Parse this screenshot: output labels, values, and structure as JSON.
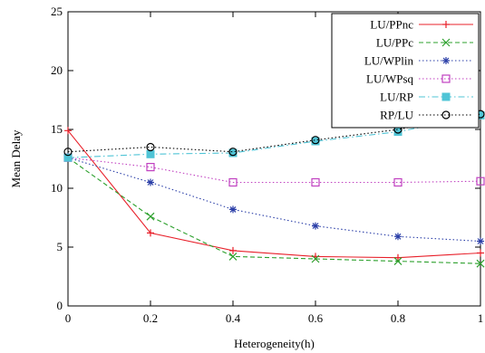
{
  "chart_data": {
    "type": "line",
    "title": "",
    "xlabel": "Heterogeneity(h)",
    "ylabel": "Mean Delay",
    "xlim": [
      0,
      1
    ],
    "ylim": [
      0,
      25
    ],
    "x_ticks": [
      0,
      0.2,
      0.4,
      0.6,
      0.8,
      1
    ],
    "x_tick_labels": [
      "0",
      "0.2",
      "0.4",
      "0.6",
      "0.8",
      "1"
    ],
    "y_ticks": [
      0,
      5,
      10,
      15,
      20,
      25
    ],
    "y_tick_labels": [
      "0",
      "5",
      "10",
      "15",
      "20",
      "25"
    ],
    "grid": false,
    "legend_position": "top-right",
    "x": [
      0,
      0.2,
      0.4,
      0.6,
      0.8,
      1
    ],
    "series": [
      {
        "name": "LU/PPnc",
        "color": "#e8202a",
        "marker": "plus",
        "dash": "solid",
        "values": [
          14.9,
          6.2,
          4.7,
          4.2,
          4.1,
          4.5
        ]
      },
      {
        "name": "LU/PPc",
        "color": "#2ca02c",
        "marker": "x",
        "dash": "dashed",
        "values": [
          12.6,
          7.6,
          4.2,
          4.0,
          3.8,
          3.6
        ]
      },
      {
        "name": "LU/WPlin",
        "color": "#2b3fa8",
        "marker": "star",
        "dash": "dotted",
        "values": [
          12.6,
          10.5,
          8.2,
          6.8,
          5.9,
          5.5
        ]
      },
      {
        "name": "LU/WPsq",
        "color": "#c040c0",
        "marker": "square-open",
        "dash": "dotted",
        "values": [
          12.6,
          11.8,
          10.5,
          10.5,
          10.5,
          10.6
        ]
      },
      {
        "name": "LU/RP",
        "color": "#4fc4d6",
        "marker": "square-filled",
        "dash": "dashdot",
        "values": [
          12.6,
          12.9,
          13.0,
          14.0,
          14.8,
          16.2
        ]
      },
      {
        "name": "RP/LU",
        "color": "#000000",
        "marker": "circle-open",
        "dash": "dotted",
        "values": [
          13.1,
          13.5,
          13.1,
          14.1,
          15.0,
          16.3
        ]
      }
    ]
  }
}
